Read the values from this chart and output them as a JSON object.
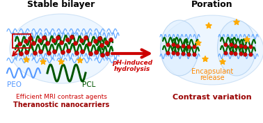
{
  "title_left": "Stable bilayer",
  "title_right": "Poration",
  "arrow_label_line1": "pH-induced",
  "arrow_label_line2": "hydrolysis",
  "peo_label": "PEO",
  "pcl_label": "PCL",
  "bottom_left_line1": "Efficient MRI contrast agents",
  "bottom_left_line2": "Theranostic nanocarriers",
  "right_label1": "Encapsulant",
  "right_label2": "release",
  "right_label3": "Contrast variation",
  "bg_color": "#ffffff",
  "text_color_red": "#cc0000",
  "text_color_orange": "#ff8800",
  "text_color_dark_red": "#990000",
  "arrow_color": "#cc0000",
  "peo_wave_color": "#5599ff",
  "pcl_wave_color": "#005500",
  "membrane_color": "#006600",
  "nanoparticle_color": "#cc0000",
  "star_color": "#ffaa00",
  "blue_wavy_color": "#66aaff",
  "vesicle_fill": "#ddeeff",
  "vesicle_edge": "#aaccee"
}
